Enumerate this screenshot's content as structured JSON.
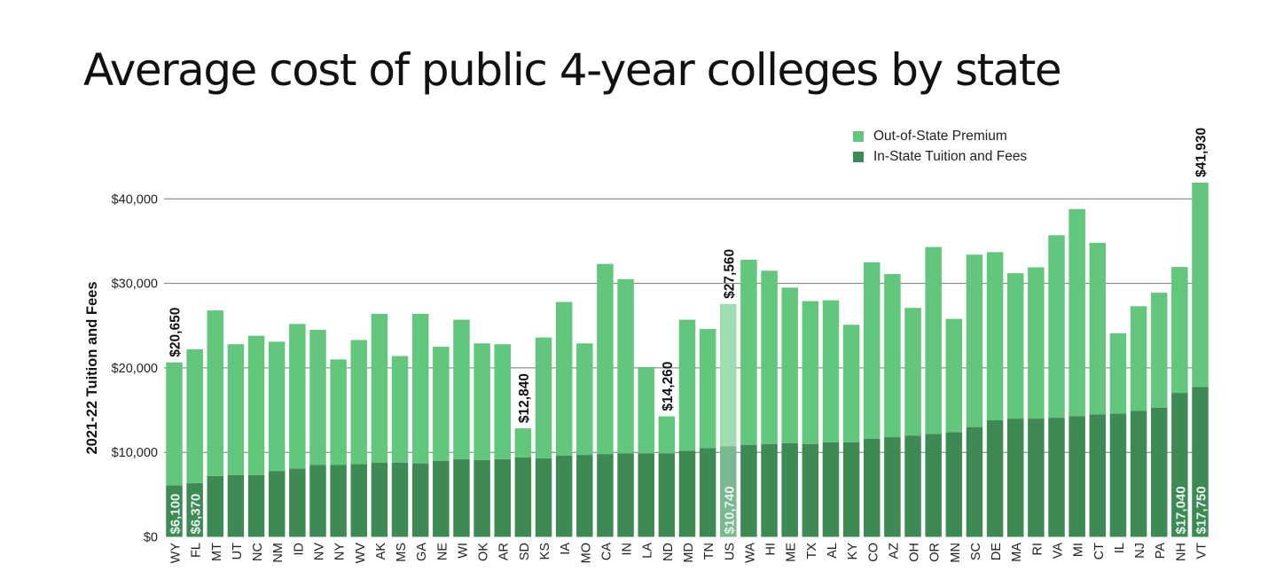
{
  "colors": {
    "in_state": "#3d8a55",
    "out_state": "#62c67c",
    "us_in_state": "#7ab890",
    "us_out_state": "#9fdcb0",
    "grid": "#777777",
    "label_dark": "#111111",
    "label_light": "#e8f5ec"
  },
  "chart_data": {
    "type": "bar",
    "stacked": true,
    "title": "Average cost of public 4-year colleges by state",
    "ylabel": "2021-22 Tuition and Fees",
    "xlabel": "",
    "ylim": [
      0,
      45000
    ],
    "yticks": [
      0,
      10000,
      20000,
      30000,
      40000
    ],
    "ytick_labels": [
      "$0",
      "$10,000",
      "$20,000",
      "$30,000",
      "$40,000"
    ],
    "grid": true,
    "legend_position": "top-right",
    "categories": [
      "WY",
      "FL",
      "MT",
      "UT",
      "NC",
      "NM",
      "ID",
      "NV",
      "NY",
      "WV",
      "AK",
      "MS",
      "GA",
      "NE",
      "WI",
      "OK",
      "AR",
      "SD",
      "KS",
      "IA",
      "MO",
      "CA",
      "IN",
      "LA",
      "ND",
      "MD",
      "TN",
      "US",
      "WA",
      "HI",
      "ME",
      "TX",
      "AL",
      "KY",
      "CO",
      "AZ",
      "OH",
      "OR",
      "MN",
      "SC",
      "DE",
      "MA",
      "RI",
      "VA",
      "MI",
      "CT",
      "IL",
      "NJ",
      "PA",
      "NH",
      "VT"
    ],
    "series": [
      {
        "name": "In-State Tuition and Fees",
        "values": [
          6100,
          6370,
          7200,
          7300,
          7300,
          7800,
          8100,
          8500,
          8500,
          8600,
          8800,
          8800,
          8700,
          9000,
          9200,
          9100,
          9200,
          9400,
          9300,
          9600,
          9700,
          9800,
          9900,
          9900,
          9900,
          10200,
          10500,
          10740,
          10900,
          11000,
          11100,
          11000,
          11200,
          11200,
          11600,
          11800,
          12000,
          12200,
          12400,
          13000,
          13800,
          14000,
          14000,
          14100,
          14300,
          14500,
          14600,
          14900,
          15300,
          17040,
          17750
        ]
      },
      {
        "name": "Out-of-State Premium",
        "values": [
          14550,
          15830,
          19600,
          15500,
          16500,
          15300,
          17100,
          16000,
          12500,
          14700,
          17600,
          12600,
          17700,
          13500,
          16500,
          13800,
          13600,
          3440,
          14300,
          18200,
          13200,
          22500,
          20600,
          10200,
          4360,
          15500,
          14100,
          16820,
          21900,
          20500,
          18400,
          16900,
          16800,
          13900,
          20900,
          19300,
          15100,
          22100,
          13400,
          20400,
          19900,
          17200,
          17900,
          21600,
          24500,
          20300,
          9500,
          12400,
          13600,
          14900,
          24180
        ]
      }
    ],
    "highlight_category": "US",
    "annotations": [
      {
        "category": "WY",
        "text": "$20,650",
        "position": "top"
      },
      {
        "category": "SD",
        "text": "$12,840",
        "position": "top"
      },
      {
        "category": "ND",
        "text": "$14,260",
        "position": "top"
      },
      {
        "category": "US",
        "text": "$27,560",
        "position": "top"
      },
      {
        "category": "VT",
        "text": "$41,930",
        "position": "top"
      },
      {
        "category": "WY",
        "text": "$6,100",
        "position": "inside"
      },
      {
        "category": "FL",
        "text": "$6,370",
        "position": "inside"
      },
      {
        "category": "US",
        "text": "$10,740",
        "position": "inside"
      },
      {
        "category": "NH",
        "text": "$17,040",
        "position": "inside"
      },
      {
        "category": "VT",
        "text": "$17,750",
        "position": "inside"
      }
    ]
  }
}
